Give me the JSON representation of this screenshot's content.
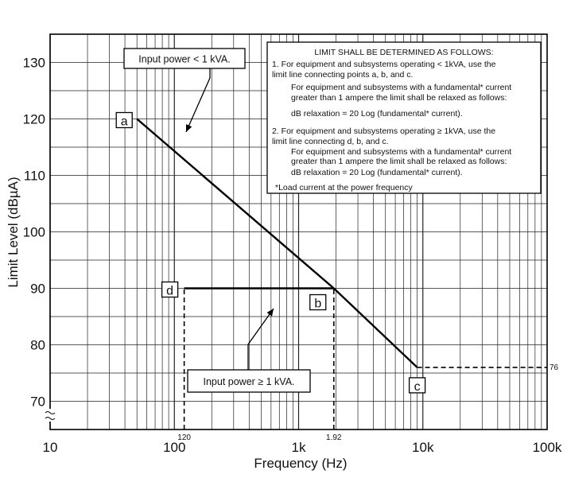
{
  "chart_data": {
    "type": "line",
    "title": "",
    "xlabel": "Frequency (Hz)",
    "ylabel": "Limit Level (dBµA)",
    "x_scale": "log",
    "xlim": [
      10,
      100000
    ],
    "ylim": [
      65,
      135
    ],
    "grid": true,
    "x_tick_labels": [
      {
        "value": 10,
        "label": "10"
      },
      {
        "value": 100,
        "label": "100"
      },
      {
        "value": 1000,
        "label": "1k"
      },
      {
        "value": 10000,
        "label": "10k"
      },
      {
        "value": 100000,
        "label": "100k"
      }
    ],
    "y_tick_labels": [
      {
        "value": 70,
        "label": "70"
      },
      {
        "value": 80,
        "label": "80"
      },
      {
        "value": 90,
        "label": "90"
      },
      {
        "value": 100,
        "label": "100"
      },
      {
        "value": 110,
        "label": "110"
      },
      {
        "value": 120,
        "label": "120"
      },
      {
        "value": 130,
        "label": "130"
      }
    ],
    "series": [
      {
        "x": [
          50,
          1920,
          9000
        ],
        "y": [
          120,
          90,
          76
        ]
      },
      {
        "x": [
          120,
          1920
        ],
        "y": [
          90,
          90
        ]
      }
    ],
    "reference_lines": [
      {
        "x": [
          120,
          120
        ],
        "y": [
          65,
          90
        ],
        "style": "dashed"
      },
      {
        "x": [
          1920,
          1920
        ],
        "y": [
          65,
          90
        ],
        "style": "dashed"
      },
      {
        "x": [
          9000,
          100000
        ],
        "y": [
          76,
          76
        ],
        "style": "dashed"
      }
    ],
    "point_labels": [
      {
        "label": "a",
        "x": 50,
        "y": 120
      },
      {
        "label": "b",
        "x": 1920,
        "y": 90
      },
      {
        "label": "c",
        "x": 9000,
        "y": 76
      },
      {
        "label": "d",
        "x": 120,
        "y": 90
      }
    ],
    "special_tick_labels": [
      {
        "label": "120",
        "axis": "x",
        "value": 120
      },
      {
        "label": "1.92",
        "axis": "x",
        "value": 1920
      },
      {
        "label": "76",
        "axis": "y",
        "value": 76
      }
    ],
    "callouts": [
      {
        "text": "Input power < 1 kVA."
      },
      {
        "text": "Input power ≥  1 kVA."
      }
    ],
    "notes": {
      "title": "LIMIT SHALL BE DETERMINED AS FOLLOWS:",
      "lines": [
        "1.  For equipment and subsystems operating < 1kVA, use the",
        "     limit line connecting points a, b, and c.",
        "For equipment and subsystems with a fundamental* current",
        "greater than 1 ampere the limit shall be relaxed as follows:",
        "dB relaxation = 20 Log (fundamental* current).",
        "2.  For equipment and subsystems operating ≥  1kVA, use the",
        "     limit line connecting d, b, and c.",
        "For equipment and subsystems with a fundamental* current",
        "greater than 1 ampere the limit shall be relaxed as follows:",
        "dB relaxation = 20 Log (fundamental* current).",
        "*Load current at the power frequency"
      ]
    }
  }
}
